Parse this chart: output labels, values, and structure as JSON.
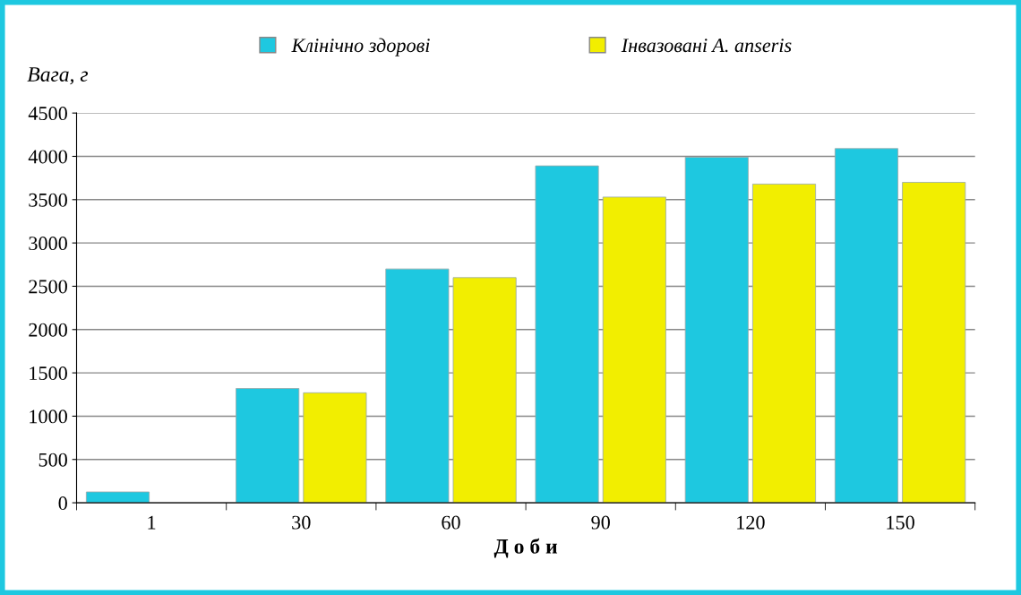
{
  "chart_data": {
    "type": "bar",
    "xlabel": "Д о б и",
    "ylabel": "Вага, г",
    "categories": [
      "1",
      "30",
      "60",
      "90",
      "120",
      "150"
    ],
    "series": [
      {
        "name": "Клінічно здорові",
        "color": "#1ec8e0",
        "values": [
          125,
          1320,
          2700,
          3890,
          3990,
          4090
        ]
      },
      {
        "name": "Інвазовані A. anseris",
        "color": "#f2ee00",
        "values": [
          null,
          1270,
          2600,
          3530,
          3680,
          3700
        ]
      }
    ],
    "ylim": [
      0,
      4500
    ],
    "yticks": [
      0,
      500,
      1000,
      1500,
      2000,
      2500,
      3000,
      3500,
      4000,
      4500
    ],
    "grid": "y",
    "legend": "top"
  }
}
